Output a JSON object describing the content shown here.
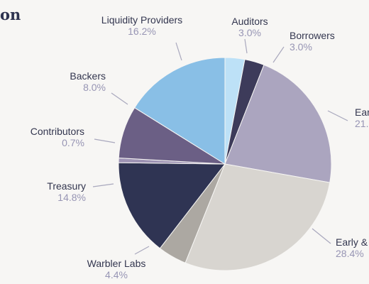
{
  "title_fragment": "on",
  "chart_data": {
    "type": "pie",
    "title": "",
    "slices": [
      {
        "label": "Auditors",
        "value_text": "3.0%",
        "value": 3.0,
        "color": "#bde1f7"
      },
      {
        "label": "Borrowers",
        "value_text": "3.0%",
        "value": 3.0,
        "color": "#3d3b5a"
      },
      {
        "label": "Ear",
        "value_text": "21.",
        "value": 21.9,
        "color": "#aba5bf"
      },
      {
        "label": "Early &",
        "value_text": "28.4%",
        "value": 28.4,
        "color": "#d8d5d0"
      },
      {
        "label": "Warbler Labs",
        "value_text": "4.4%",
        "value": 4.4,
        "color": "#aca8a2"
      },
      {
        "label": "Treasury",
        "value_text": "14.8%",
        "value": 14.8,
        "color": "#2f3453"
      },
      {
        "label": "Contributors",
        "value_text": "0.7%",
        "value": 0.7,
        "color": "#9e93b4"
      },
      {
        "label": "Backers",
        "value_text": "8.0%",
        "value": 8.0,
        "color": "#6b5f85"
      },
      {
        "label": "Liquidity Providers",
        "value_text": "16.2%",
        "value": 16.2,
        "color": "#89bfe6"
      }
    ]
  }
}
